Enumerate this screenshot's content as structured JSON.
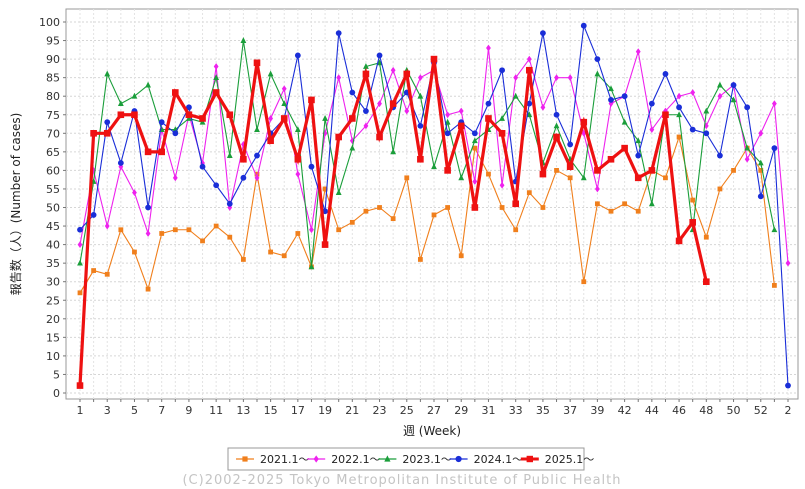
{
  "chart_data": {
    "type": "line",
    "xlabel": "週 (Week)",
    "ylabel": "報告数（人）(Number of cases)",
    "xlim": [
      0,
      53
    ],
    "ylim": [
      0,
      100
    ],
    "grid": true,
    "legend_position": "bottom",
    "x_ticks": [
      "1",
      "3",
      "5",
      "7",
      "9",
      "11",
      "13",
      "15",
      "17",
      "19",
      "21",
      "23",
      "25",
      "27",
      "29",
      "31",
      "33",
      "35",
      "37",
      "39",
      "42",
      "44",
      "46",
      "48",
      "50",
      "52",
      "2"
    ],
    "y_ticks": [
      0,
      5,
      10,
      15,
      20,
      25,
      30,
      35,
      40,
      45,
      50,
      55,
      60,
      65,
      70,
      75,
      80,
      85,
      90,
      95,
      100
    ],
    "credit": "(C)2002-2025 Tokyo Metropolitan Institute of Public Health",
    "series": [
      {
        "name": "2021.1〜",
        "color": "#f07f1c",
        "marker": "square",
        "x": [
          1,
          2,
          3,
          4,
          5,
          6,
          7,
          8,
          9,
          10,
          11,
          12,
          13,
          14,
          15,
          16,
          17,
          18,
          19,
          20,
          21,
          22,
          23,
          24,
          25,
          26,
          27,
          28,
          29,
          30,
          31,
          32,
          33,
          34,
          35,
          36,
          37,
          38,
          39,
          40,
          41,
          42,
          43,
          44,
          45,
          46,
          47,
          48,
          49,
          50,
          51,
          52
        ],
        "values": [
          27,
          33,
          32,
          44,
          38,
          28,
          43,
          44,
          44,
          41,
          45,
          42,
          36,
          59,
          38,
          37,
          43,
          34,
          55,
          44,
          46,
          49,
          50,
          47,
          58,
          36,
          48,
          50,
          37,
          66,
          59,
          50,
          44,
          54,
          50,
          60,
          58,
          30,
          51,
          49,
          51,
          49,
          60,
          58,
          69,
          52,
          42,
          55,
          60,
          66,
          60,
          29
        ]
      },
      {
        "name": "2022.1〜",
        "color": "#ee22ee",
        "marker": "diamond",
        "x": [
          1,
          2,
          3,
          4,
          5,
          6,
          7,
          8,
          9,
          10,
          11,
          12,
          13,
          14,
          15,
          16,
          17,
          18,
          19,
          20,
          21,
          22,
          23,
          24,
          25,
          26,
          27,
          28,
          29,
          30,
          31,
          32,
          33,
          34,
          35,
          36,
          37,
          38,
          39,
          40,
          41,
          42,
          43,
          44,
          45,
          46,
          47,
          48,
          49,
          50,
          51,
          52,
          53
        ],
        "values": [
          40,
          60,
          45,
          61,
          54,
          43,
          71,
          58,
          75,
          62,
          88,
          50,
          67,
          58,
          74,
          82,
          59,
          44,
          70,
          85,
          68,
          72,
          78,
          87,
          76,
          85,
          87,
          75,
          76,
          57,
          93,
          56,
          85,
          90,
          77,
          85,
          85,
          70,
          55,
          78,
          80,
          92,
          71,
          76,
          80,
          81,
          72,
          80,
          83,
          63,
          70,
          78,
          35
        ]
      },
      {
        "name": "2023.1〜",
        "color": "#1a9e3a",
        "marker": "triangle",
        "x": [
          1,
          2,
          3,
          4,
          5,
          6,
          7,
          8,
          9,
          10,
          11,
          12,
          13,
          14,
          15,
          16,
          17,
          18,
          19,
          20,
          21,
          22,
          23,
          24,
          25,
          26,
          27,
          28,
          29,
          30,
          31,
          32,
          33,
          34,
          35,
          36,
          37,
          38,
          39,
          40,
          41,
          42,
          43,
          44,
          45,
          46,
          47,
          48,
          49,
          50,
          51,
          52
        ],
        "values": [
          35,
          57,
          86,
          78,
          80,
          83,
          71,
          71,
          74,
          73,
          85,
          64,
          95,
          71,
          86,
          78,
          71,
          34,
          74,
          54,
          66,
          88,
          89,
          65,
          87,
          80,
          61,
          73,
          58,
          68,
          71,
          74,
          80,
          75,
          62,
          72,
          63,
          58,
          86,
          82,
          73,
          68,
          51,
          75,
          75,
          44,
          76,
          83,
          79,
          66,
          62,
          44
        ]
      },
      {
        "name": "2024.1〜",
        "color": "#1a2ed8",
        "marker": "circle",
        "x": [
          1,
          2,
          3,
          4,
          5,
          6,
          7,
          8,
          9,
          10,
          11,
          12,
          13,
          14,
          15,
          16,
          17,
          18,
          19,
          20,
          21,
          22,
          23,
          24,
          25,
          26,
          27,
          28,
          29,
          30,
          31,
          32,
          33,
          34,
          35,
          36,
          37,
          38,
          39,
          40,
          41,
          42,
          43,
          44,
          45,
          46,
          47,
          48,
          49,
          50,
          51,
          52
        ],
        "values": [
          44,
          48,
          73,
          62,
          76,
          50,
          73,
          70,
          77,
          61,
          56,
          51,
          58,
          64,
          70,
          74,
          91,
          61,
          49,
          97,
          81,
          76,
          91,
          77,
          81,
          72,
          89,
          70,
          73,
          70,
          78,
          87,
          57,
          78,
          97,
          75,
          67,
          99,
          90,
          79,
          80,
          64,
          78,
          86,
          77,
          71,
          70,
          64,
          83,
          77,
          53,
          66
        ]
      },
      {
        "name": "2025.1〜",
        "color": "#ee1111",
        "marker": "square",
        "x": [
          1,
          2,
          3,
          4,
          5,
          6,
          7,
          8,
          9,
          10,
          11,
          12,
          13,
          14,
          15,
          16,
          17,
          18,
          19,
          20,
          21,
          22,
          23,
          24,
          25,
          26,
          27,
          28,
          29,
          30,
          31,
          32,
          33,
          34,
          35,
          36,
          37,
          38,
          39,
          40,
          41,
          42,
          43,
          44,
          45,
          46,
          47
        ],
        "values": [
          2,
          70,
          70,
          75,
          75,
          65,
          65,
          81,
          75,
          74,
          81,
          75,
          63,
          89,
          68,
          74,
          63,
          79,
          40,
          69,
          74,
          86,
          69,
          78,
          86,
          63,
          90,
          60,
          72,
          50,
          74,
          70,
          51,
          87,
          59,
          69,
          61,
          73,
          60,
          63,
          66,
          58,
          60,
          75,
          41,
          46,
          30
        ]
      },
      {
        "name": "2024.1〜 (end)",
        "legend": false,
        "color": "#1a2ed8",
        "marker": "circle",
        "x": [
          53
        ],
        "values": [
          2
        ]
      }
    ]
  }
}
